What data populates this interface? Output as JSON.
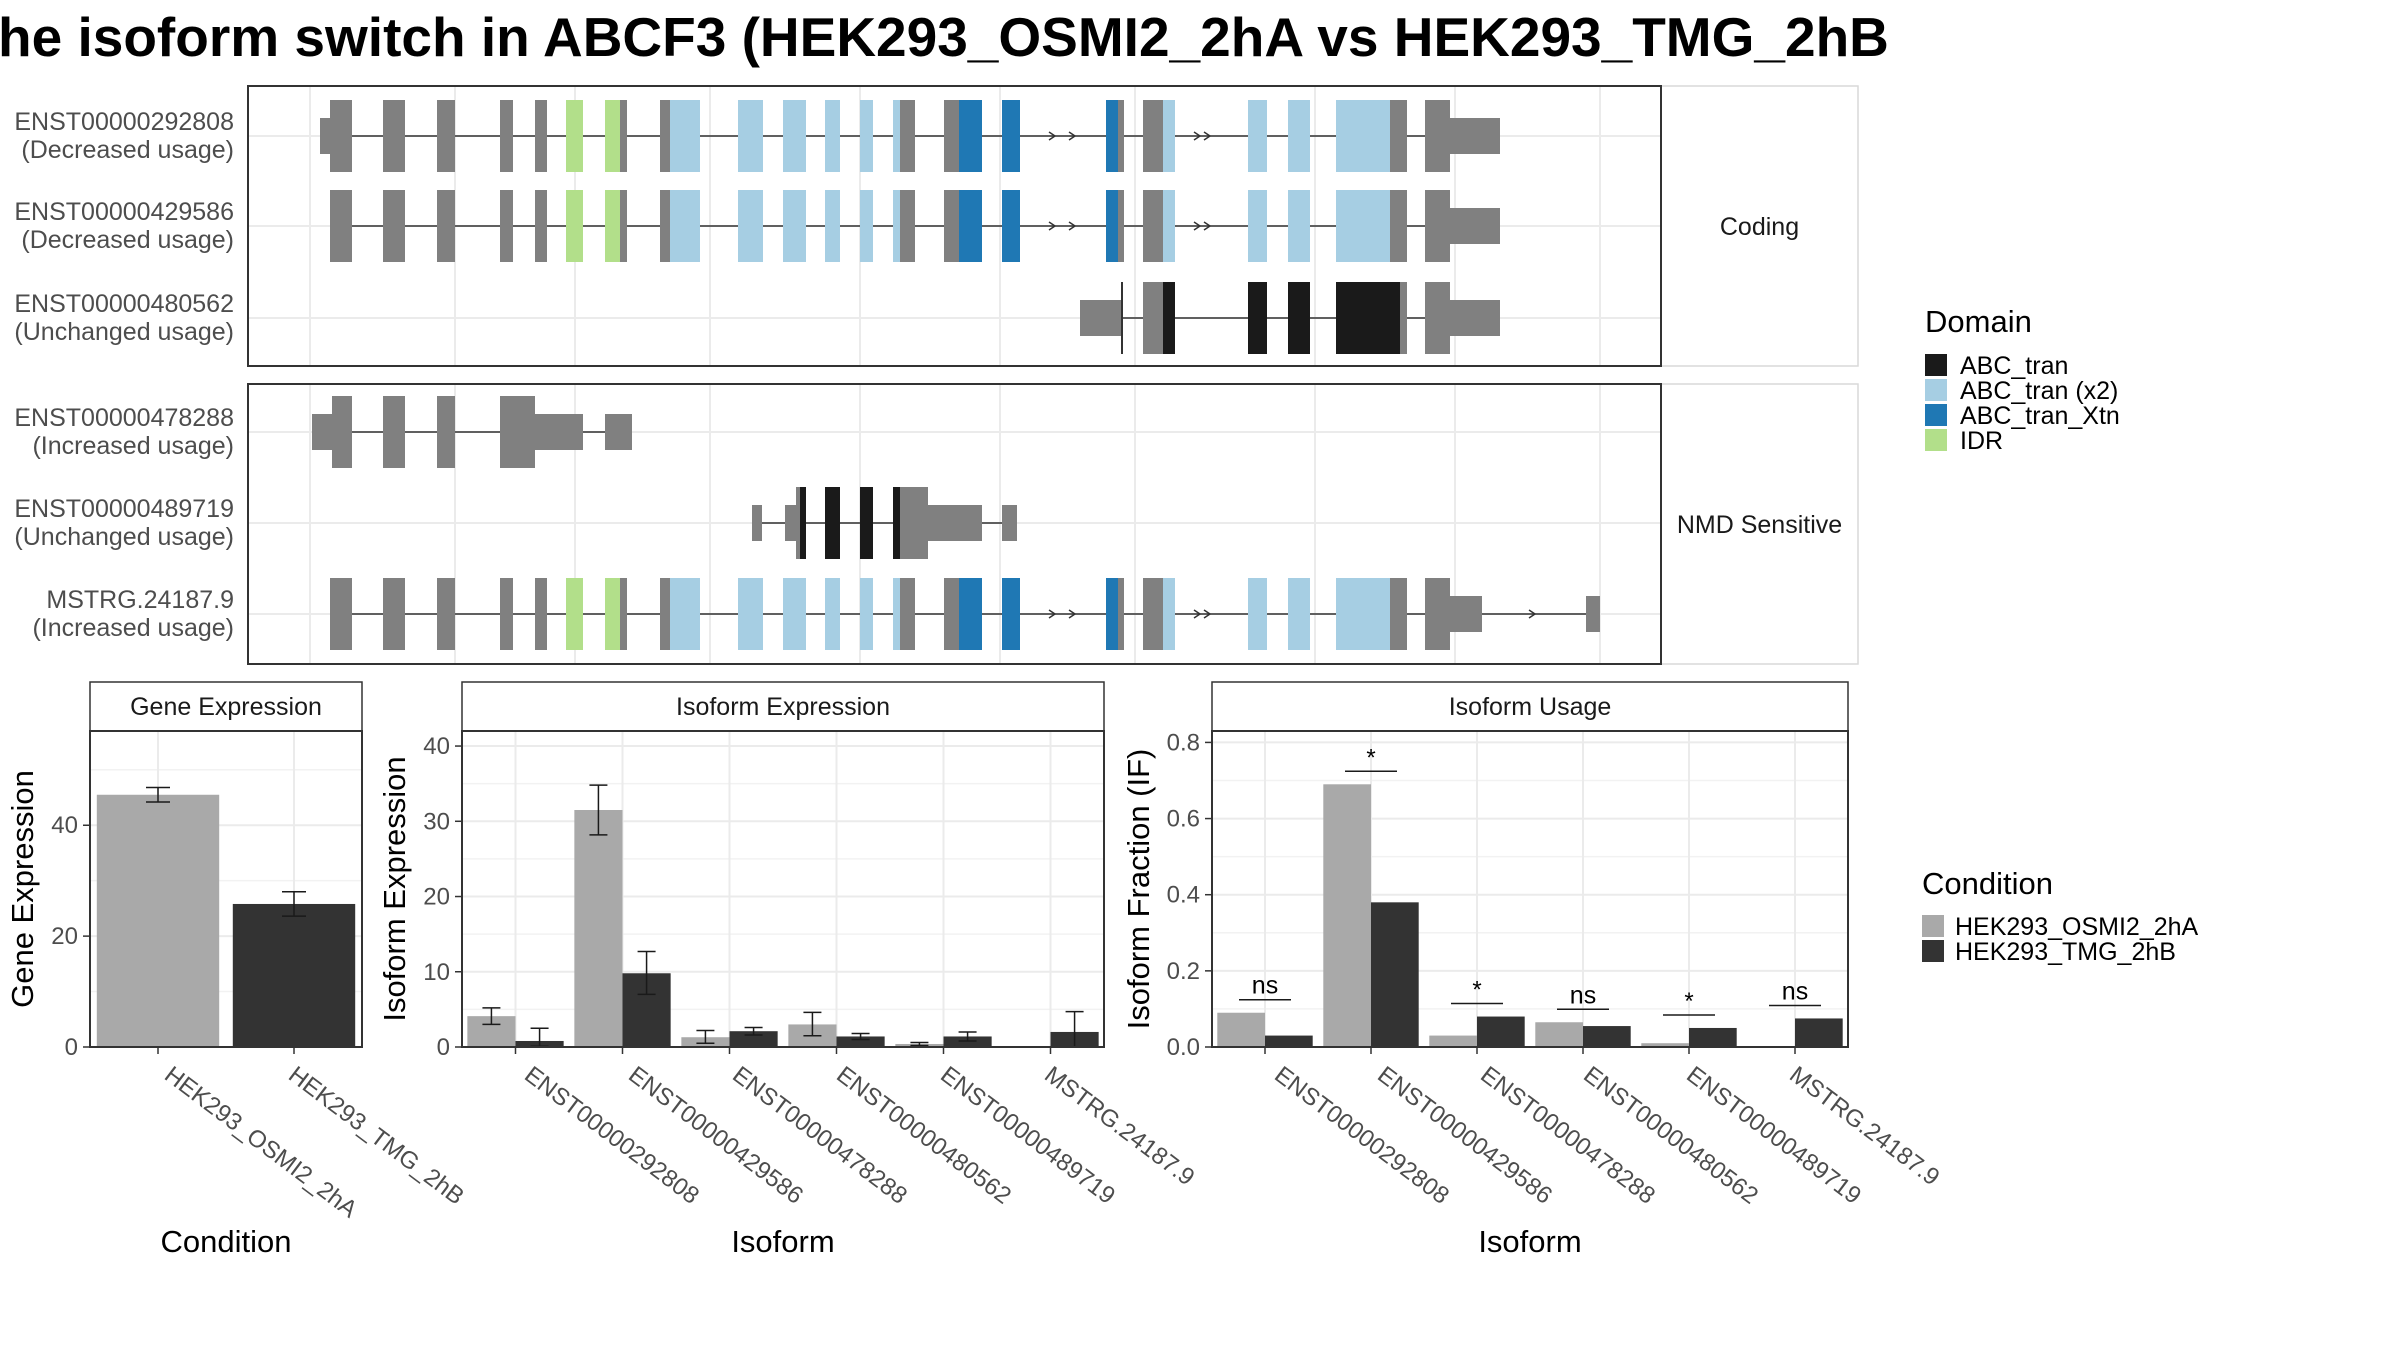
{
  "title": "he isoform switch in ABCF3 (HEK293_OSMI2_2hA vs HEK293_TMG_2hB",
  "colors": {
    "ABC_tran": "#1a1a1a",
    "ABC_tran (x2)": "#a6cee3",
    "ABC_tran_Xtn": "#1f78b4",
    "IDR": "#b2df8a",
    "exon": "#808080",
    "cond_a": "#a9a9a9",
    "cond_b": "#333333"
  },
  "structure": {
    "facets": [
      {
        "label": "Coding",
        "rows": [
          {
            "id": "ENST00000292808",
            "usage": "(Decreased usage)"
          },
          {
            "id": "ENST00000429586",
            "usage": "(Decreased usage)"
          },
          {
            "id": "ENST00000480562",
            "usage": "(Unchanged usage)"
          }
        ]
      },
      {
        "label": "NMD Sensitive",
        "rows": [
          {
            "id": "ENST00000478288",
            "usage": "(Increased usage)"
          },
          {
            "id": "ENST00000489719",
            "usage": "(Unchanged usage)"
          },
          {
            "id": "MSTRG.24187.9",
            "usage": "(Increased usage)"
          }
        ]
      }
    ]
  },
  "legend_domain": {
    "title": "Domain",
    "items": [
      {
        "label": "ABC_tran",
        "color": "#1a1a1a"
      },
      {
        "label": "ABC_tran (x2)",
        "color": "#a6cee3"
      },
      {
        "label": "ABC_tran_Xtn",
        "color": "#1f78b4"
      },
      {
        "label": "IDR",
        "color": "#b2df8a"
      }
    ]
  },
  "legend_condition": {
    "title": "Condition",
    "items": [
      {
        "label": "HEK293_OSMI2_2hA",
        "color": "#a9a9a9"
      },
      {
        "label": "HEK293_TMG_2hB",
        "color": "#333333"
      }
    ]
  },
  "chart_data": [
    {
      "type": "bar",
      "title": "Gene Expression",
      "xlabel": "Condition",
      "ylabel": "Gene Expression",
      "ylim": [
        0,
        57
      ],
      "yticks": [
        0,
        20,
        40
      ],
      "categories": [
        "HEK293_OSMI2_2hA",
        "HEK293_TMG_2hB"
      ],
      "values": [
        45.5,
        25.8
      ],
      "errors": [
        [
          44.2,
          46.8
        ],
        [
          23.6,
          28.0
        ]
      ]
    },
    {
      "type": "bar",
      "title": "Isoform Expression",
      "xlabel": "Isoform",
      "ylabel": "Isoform Expression",
      "ylim": [
        0,
        42
      ],
      "yticks": [
        0,
        10,
        20,
        30,
        40
      ],
      "categories": [
        "ENST00000292808",
        "ENST00000429586",
        "ENST00000478288",
        "ENST00000480562",
        "ENST00000489719",
        "MSTRG.24187.9"
      ],
      "series": [
        {
          "name": "HEK293_OSMI2_2hA",
          "values": [
            4.1,
            31.5,
            1.3,
            3.0,
            0.4,
            0.0
          ],
          "errors": [
            [
              3.0,
              5.2
            ],
            [
              28.2,
              34.8
            ],
            [
              0.5,
              2.2
            ],
            [
              1.5,
              4.6
            ],
            [
              0.2,
              0.6
            ],
            [
              0.0,
              0.0
            ]
          ]
        },
        {
          "name": "HEK293_TMG_2hB",
          "values": [
            0.8,
            9.8,
            2.1,
            1.4,
            1.4,
            2.0
          ],
          "errors": [
            [
              0.1,
              2.5
            ],
            [
              7.0,
              12.7
            ],
            [
              1.6,
              2.6
            ],
            [
              1.0,
              1.8
            ],
            [
              0.8,
              2.0
            ],
            [
              0.0,
              4.7
            ]
          ]
        }
      ]
    },
    {
      "type": "bar",
      "title": "Isoform Usage",
      "xlabel": "Isoform",
      "ylabel": "Isoform Fraction (IF)",
      "ylim": [
        0,
        0.83
      ],
      "yticks": [
        0.0,
        0.2,
        0.4,
        0.6,
        0.8
      ],
      "categories": [
        "ENST00000292808",
        "ENST00000429586",
        "ENST00000478288",
        "ENST00000480562",
        "ENST00000489719",
        "MSTRG.24187.9"
      ],
      "series": [
        {
          "name": "HEK293_OSMI2_2hA",
          "values": [
            0.09,
            0.69,
            0.03,
            0.065,
            0.01,
            0.0
          ]
        },
        {
          "name": "HEK293_TMG_2hB",
          "values": [
            0.03,
            0.38,
            0.08,
            0.055,
            0.05,
            0.075
          ]
        }
      ],
      "significance": [
        "ns",
        "*",
        "*",
        "ns",
        "*",
        "ns"
      ]
    }
  ]
}
